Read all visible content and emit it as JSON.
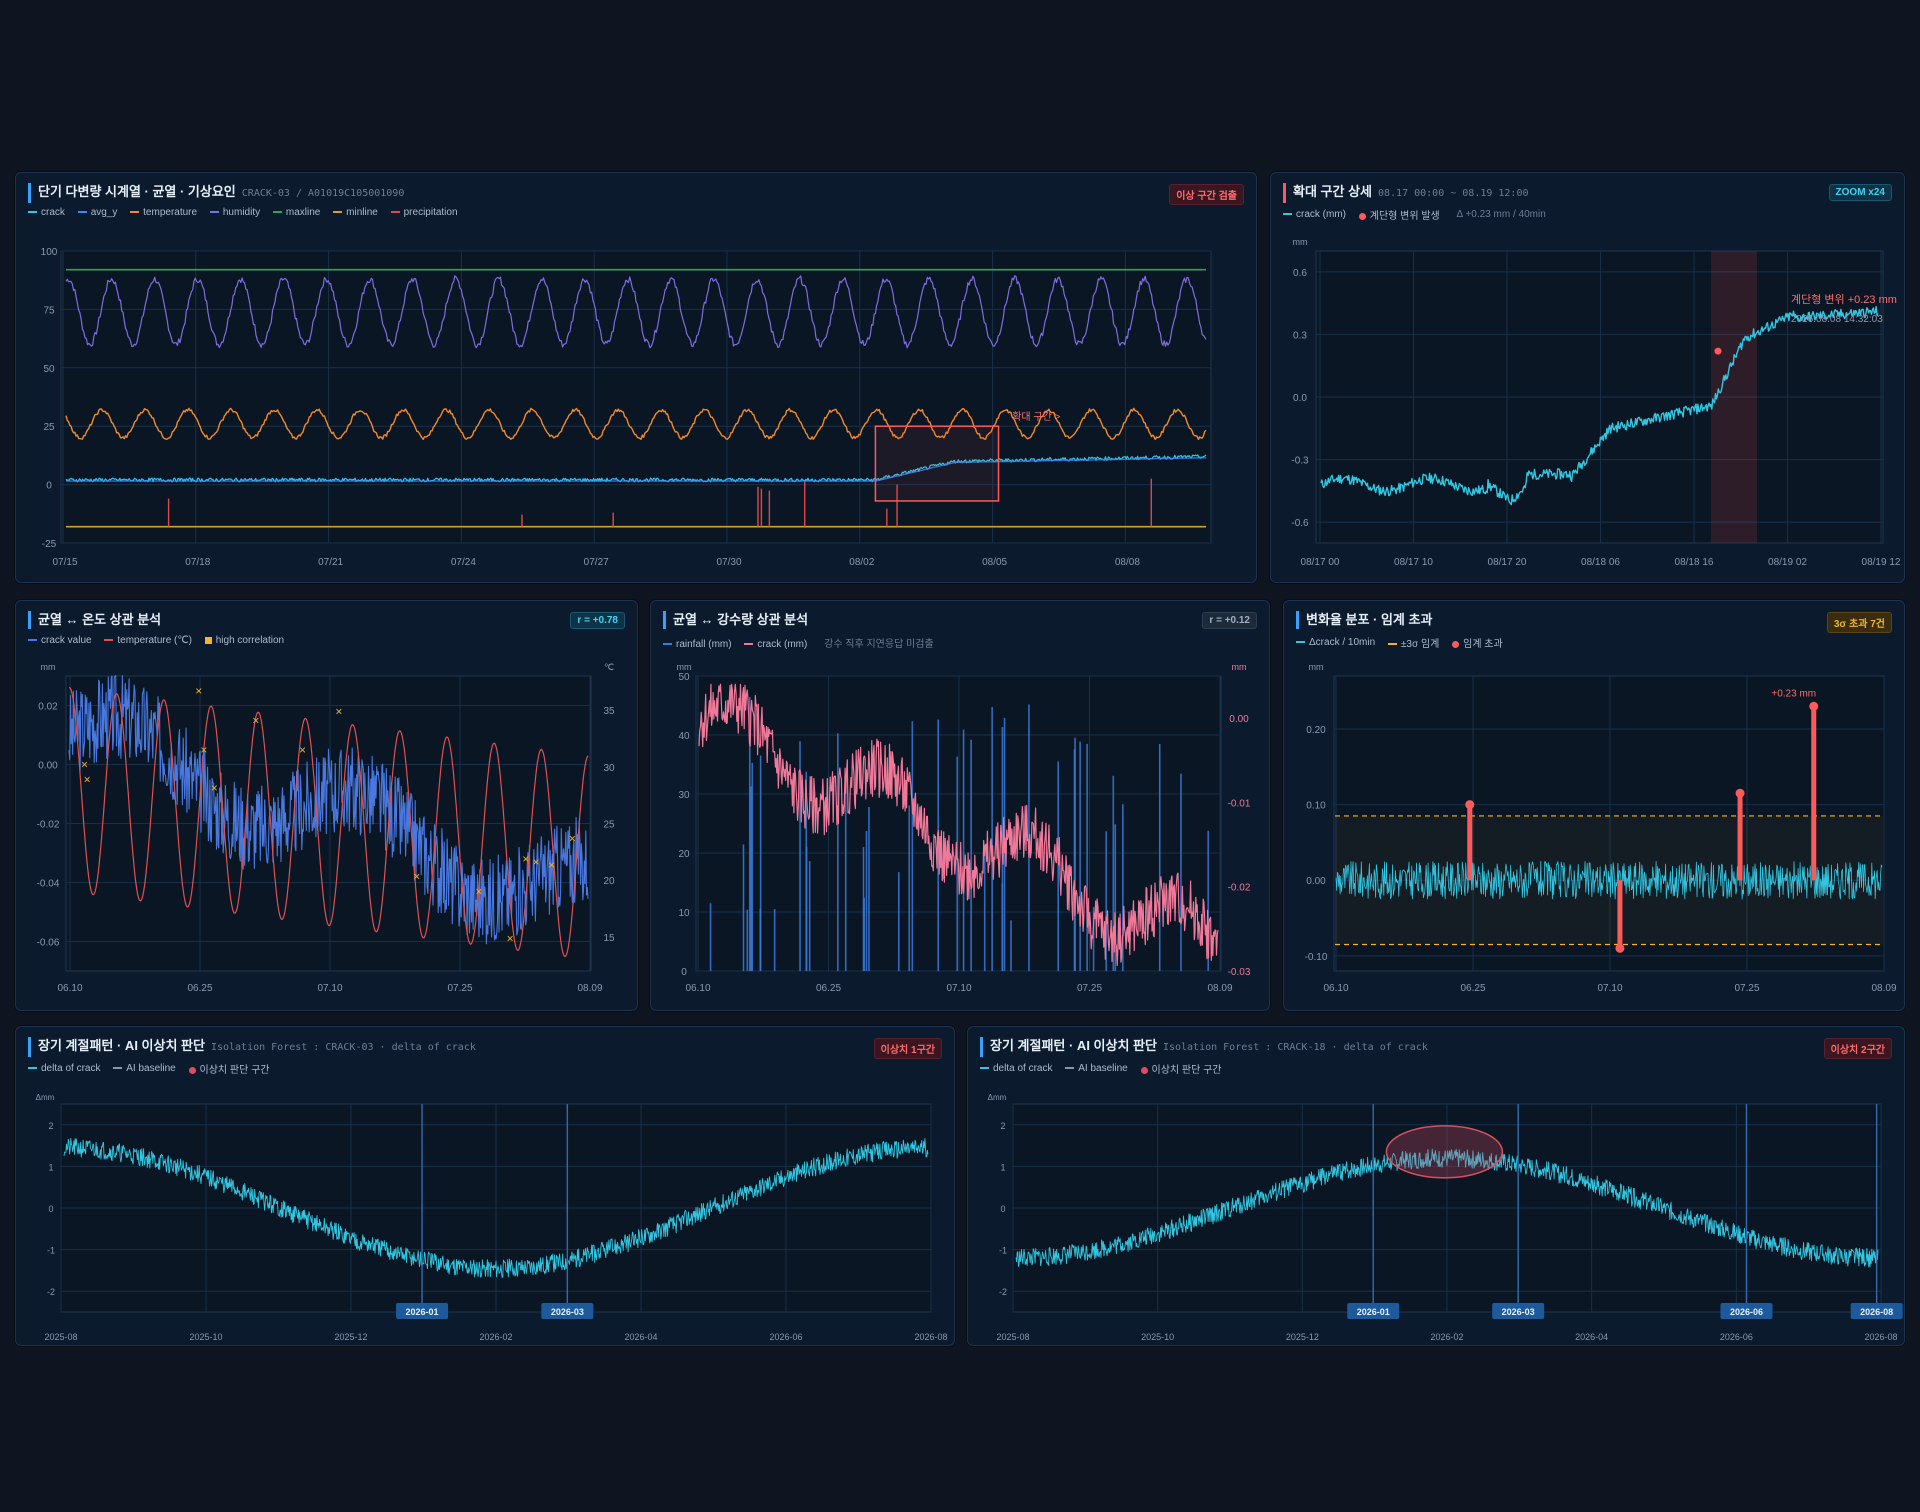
{
  "colors": {
    "crack": "#33c6e0",
    "avg_y": "#3a86ff",
    "temperature": "#f08a2c",
    "humidity": "#7d6ee0",
    "maxline": "#2aa84a",
    "minline": "#d8a020",
    "precipitation": "#e04848",
    "anomaly": "#ff5a5a",
    "amber": "#f0b430",
    "rain": "#3a7ad8",
    "crack_pink": "#f07898",
    "bluecrack": "#4878e0"
  },
  "panel1": {
    "title": "단기 다변량 시계열 · 균열 · 기상요인",
    "subtitle": "CRACK-03 / A01019C105001090",
    "badge": "이상 구간 검출",
    "legend": [
      "crack",
      "avg_y",
      "temperature",
      "humidity",
      "maxline",
      "minline",
      "precipitation"
    ],
    "annotation": "확대 구간 >",
    "chart_data": {
      "type": "line",
      "x_ticks": [
        "07/15",
        "07/18",
        "07/21",
        "07/24",
        "07/27",
        "07/30",
        "08/02",
        "08/05",
        "08/08"
      ],
      "y_ticks": [
        "100",
        "75",
        "50",
        "25",
        "0",
        "-25"
      ],
      "ylim": [
        -25,
        100
      ],
      "series": [
        {
          "name": "humidity",
          "min": 60,
          "max": 88
        },
        {
          "name": "temperature",
          "min": 20,
          "max": 32
        },
        {
          "name": "maxline",
          "value": 92
        },
        {
          "name": "minline",
          "value": -18
        },
        {
          "name": "crack",
          "start": 2,
          "end": 12
        }
      ]
    }
  },
  "panel2": {
    "title": "확대 구간 상세",
    "subtitle": "08.17 00:00 ~ 08.19 12:00",
    "badge": "ZOOM x24",
    "legend": [
      "crack (mm)",
      "계단형 변위 발생"
    ],
    "legend_note": "Δ +0.23 mm / 40min",
    "unit": "mm",
    "annotation_title": "계단형 변위 +0.23 mm",
    "annotation_time": "2026.08.08 14:32:03",
    "chart_data": {
      "type": "line",
      "x_ticks": [
        "08/17 00",
        "08/17 10",
        "08/17 20",
        "08/18 06",
        "08/18 16",
        "08/19 02",
        "08/19 12"
      ],
      "y_ticks": [
        "0.6",
        "0.3",
        "0.0",
        "-0.3",
        "-0.6"
      ],
      "ylim": [
        -0.7,
        0.7
      ]
    }
  },
  "panel3": {
    "title": "균열 ↔ 온도 상관 분석",
    "badge": "r = +0.78",
    "legend": [
      "crack value",
      "temperature (℃)",
      "high correlation"
    ],
    "unit_left": "mm",
    "unit_right": "℃",
    "chart_data": {
      "type": "line",
      "x_ticks": [
        "06.10",
        "06.25",
        "07.10",
        "07.25",
        "08.09"
      ],
      "y_ticks_left": [
        "0.02",
        "0.00",
        "-0.02",
        "-0.04",
        "-0.06"
      ],
      "y_ticks_right": [
        "35",
        "30",
        "25",
        "20",
        "15"
      ],
      "ylim_left": [
        -0.07,
        0.03
      ],
      "ylim_right": [
        12,
        38
      ]
    }
  },
  "panel4": {
    "title": "균열 ↔ 강수량 상관 분석",
    "badge": "r = +0.12",
    "legend": [
      "rainfall (mm)",
      "crack (mm)"
    ],
    "legend_note": "강수 직후 지연응답 미검출",
    "unit_left": "mm",
    "unit_right": "mm",
    "chart_data": {
      "type": "bar",
      "x_ticks": [
        "06.10",
        "06.25",
        "07.10",
        "07.25",
        "08.09"
      ],
      "y_ticks_left": [
        "50",
        "40",
        "30",
        "20",
        "10",
        "0"
      ],
      "y_ticks_right": [
        "0.00",
        "-0.01",
        "-0.02",
        "-0.03"
      ],
      "ylim_left": [
        0,
        50
      ],
      "ylim_right": [
        -0.03,
        0.005
      ]
    }
  },
  "panel5": {
    "title": "변화율 분포 · 임계 초과",
    "badge": "3σ 초과 7건",
    "legend": [
      "Δcrack / 10min",
      "±3σ 임계",
      "임계 초과"
    ],
    "unit": "mm",
    "annotation": "+0.23 mm",
    "chart_data": {
      "type": "line",
      "x_ticks": [
        "06.10",
        "06.25",
        "07.10",
        "07.25",
        "08.09"
      ],
      "y_ticks": [
        "0.20",
        "0.10",
        "0.00",
        "-0.10"
      ],
      "ylim": [
        -0.12,
        0.27
      ],
      "threshold": 0.085,
      "spikes": [
        0.1,
        -0.09,
        0.115,
        0.23
      ]
    }
  },
  "panel6": {
    "title": "장기 계절패턴 · AI 이상치 판단",
    "subtitle": "Isolation Forest : CRACK-03 · delta of crack",
    "badge": "이상치 1구간",
    "legend": [
      "delta of crack",
      "AI baseline",
      "이상치 판단 구간"
    ],
    "unit": "Δmm",
    "markers": [
      "2026-01",
      "2026-03"
    ],
    "chart_data": {
      "type": "line",
      "x_ticks": [
        "2025-08",
        "2025-10",
        "2025-12",
        "2026-02",
        "2026-04",
        "2026-06",
        "2026-08"
      ],
      "y_ticks": [
        "2",
        "1",
        "0",
        "-1",
        "-2"
      ],
      "ylim": [
        -2.5,
        2.5
      ]
    }
  },
  "panel7": {
    "title": "장기 계절패턴 · AI 이상치 판단",
    "subtitle": "Isolation Forest : CRACK-18 · delta of crack",
    "badge": "이상치 2구간",
    "legend": [
      "delta of crack",
      "AI baseline",
      "이상치 판단 구간"
    ],
    "unit": "Δmm",
    "markers": [
      "2026-01",
      "2026-03",
      "2026-06",
      "2026-08"
    ],
    "chart_data": {
      "type": "line",
      "x_ticks": [
        "2025-08",
        "2025-10",
        "2025-12",
        "2026-02",
        "2026-04",
        "2026-06",
        "2026-08"
      ],
      "y_ticks": [
        "2",
        "1",
        "0",
        "-1",
        "-2"
      ],
      "ylim": [
        -2.5,
        2.5
      ]
    }
  }
}
